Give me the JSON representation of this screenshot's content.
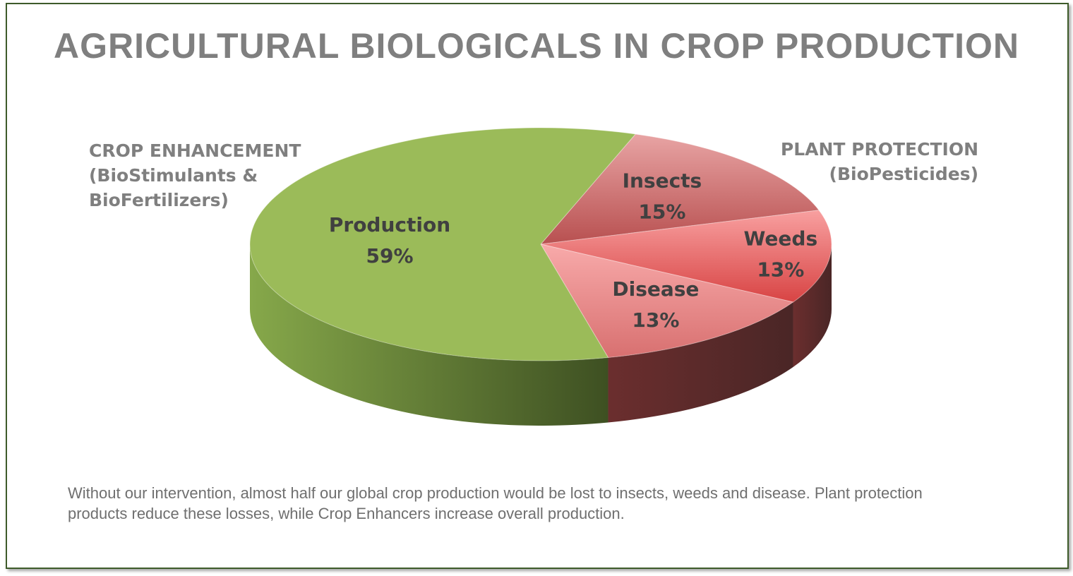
{
  "title": "AGRICULTURAL BIOLOGICALS IN CROP PRODUCTION",
  "groups": {
    "enhancement": {
      "lines": [
        "CROP ENHANCEMENT",
        "(BioStimulants &",
        "BioFertilizers)"
      ]
    },
    "protection": {
      "lines": [
        "PLANT PROTECTION",
        "(BioPesticides)"
      ]
    }
  },
  "chart_data": {
    "type": "pie",
    "style": "3d",
    "slices": [
      {
        "name": "Insects",
        "value": 15,
        "label": "15%",
        "color": "#d88080"
      },
      {
        "name": "Weeds",
        "value": 13,
        "label": "13%",
        "color": "#ee7a7a"
      },
      {
        "name": "Disease",
        "value": 13,
        "label": "13%",
        "color": "#f2a0a0"
      },
      {
        "name": "Production",
        "value": 59,
        "label": "59%",
        "color": "#9bbb59"
      }
    ],
    "legend": "none",
    "data_labels": "inside"
  },
  "caption": " Without our intervention, almost half our global crop production would be lost to insects, weeds and disease. Plant protection products reduce these losses, while Crop Enhancers increase overall production."
}
